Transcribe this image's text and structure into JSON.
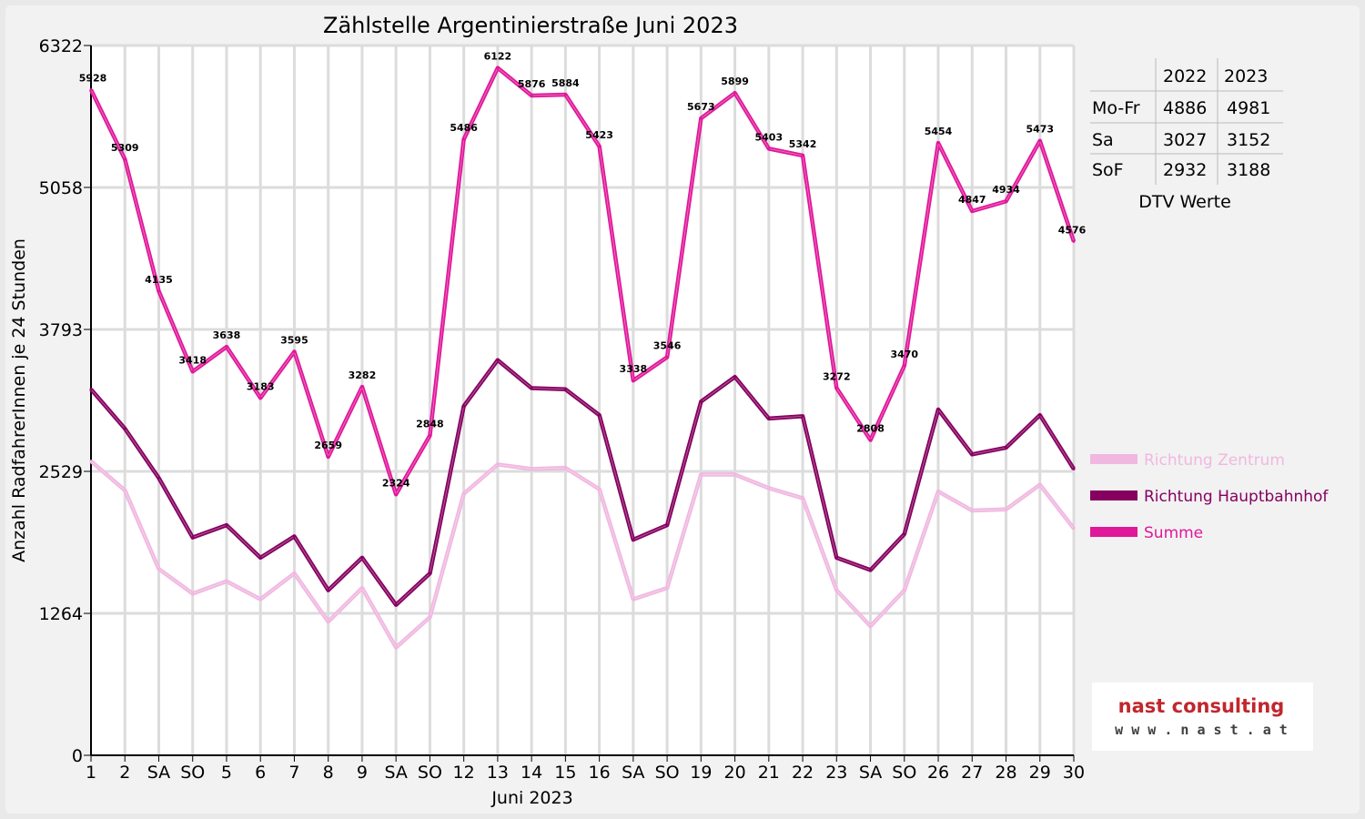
{
  "chart_data": {
    "type": "line",
    "title": "Zählstelle Argentinierstraße Juni 2023",
    "xlabel": "Juni 2023",
    "ylabel": "Anzahl RadfahrerInnen je 24 Stunden",
    "ylim": [
      0,
      6322
    ],
    "yticks": [
      "0",
      "1264",
      "2529",
      "3793",
      "5058",
      "6322"
    ],
    "ytick_values": [
      0,
      1264,
      2529,
      3793,
      5058,
      6322
    ],
    "categories": [
      "1",
      "2",
      "SA",
      "SO",
      "5",
      "6",
      "7",
      "8",
      "9",
      "SA",
      "SO",
      "12",
      "13",
      "14",
      "15",
      "16",
      "SA",
      "SO",
      "19",
      "20",
      "21",
      "22",
      "23",
      "SA",
      "SO",
      "26",
      "27",
      "28",
      "29",
      "30"
    ],
    "category_colors": [
      "#000",
      "#000",
      "#000",
      "#e00000",
      "#000",
      "#000",
      "#000",
      "#e00000",
      "#000",
      "#000",
      "#e00000",
      "#000",
      "#000",
      "#000",
      "#000",
      "#000",
      "#000",
      "#e00000",
      "#000",
      "#000",
      "#000",
      "#000",
      "#000",
      "#000",
      "#e00000",
      "#000",
      "#000",
      "#000",
      "#000",
      "#000"
    ],
    "grid": true,
    "legend_position": "right",
    "series": [
      {
        "name": "Richtung Zentrum",
        "color": "#f0b8e0",
        "values": [
          2620,
          2360,
          1660,
          1440,
          1550,
          1390,
          1620,
          1190,
          1490,
          960,
          1230,
          2330,
          2590,
          2550,
          2560,
          2370,
          1390,
          1490,
          2500,
          2500,
          2380,
          2290,
          1470,
          1150,
          1470,
          2350,
          2180,
          2190,
          2410,
          2020
        ]
      },
      {
        "name": "Richtung Hauptbahnhof",
        "color": "#860060",
        "values": [
          3260,
          2910,
          2470,
          1940,
          2050,
          1760,
          1950,
          1470,
          1760,
          1340,
          1620,
          3110,
          3520,
          3270,
          3260,
          3030,
          1920,
          2050,
          3150,
          3370,
          3000,
          3020,
          1760,
          1650,
          1970,
          3080,
          2680,
          2740,
          3030,
          2550
        ]
      },
      {
        "name": "Summe",
        "color": "#e0189a",
        "labels": true,
        "values": [
          5928,
          5309,
          4135,
          3418,
          3638,
          3183,
          3595,
          2659,
          3282,
          2324,
          2848,
          5486,
          6122,
          5876,
          5884,
          5423,
          3338,
          3546,
          5673,
          5899,
          5403,
          5342,
          3272,
          2808,
          3470,
          5454,
          4847,
          4934,
          5473,
          4576
        ]
      }
    ]
  },
  "dtv": {
    "headers": [
      "",
      "2022",
      "2023"
    ],
    "rows": [
      {
        "label": "Mo-Fr",
        "v2022": "4886",
        "v2023": "4981"
      },
      {
        "label": "Sa",
        "v2022": "3027",
        "v2023": "3152"
      },
      {
        "label": "SoF",
        "v2022": "2932",
        "v2023": "3188"
      }
    ],
    "caption": "DTV Werte"
  },
  "logo": {
    "line1": "nast consulting",
    "line2": "w w w . n a s t . a t"
  }
}
